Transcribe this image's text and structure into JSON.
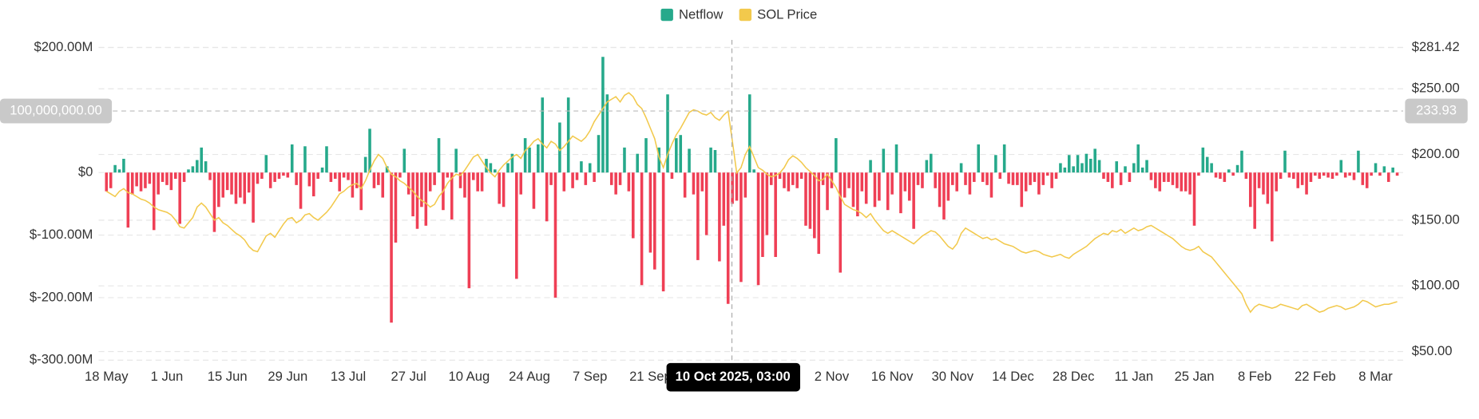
{
  "chart_data": {
    "type": "bar-line",
    "categories": [
      "18 May",
      null,
      null,
      null,
      null,
      null,
      null,
      null,
      null,
      null,
      null,
      null,
      null,
      null,
      "1 Jun",
      null,
      null,
      null,
      null,
      null,
      null,
      null,
      null,
      null,
      null,
      null,
      null,
      null,
      "15 Jun",
      null,
      null,
      null,
      null,
      null,
      null,
      null,
      null,
      null,
      null,
      null,
      null,
      null,
      "29 Jun",
      null,
      null,
      null,
      null,
      null,
      null,
      null,
      null,
      null,
      null,
      null,
      null,
      null,
      "13 Jul",
      null,
      null,
      null,
      null,
      null,
      null,
      null,
      null,
      null,
      null,
      null,
      null,
      null,
      "27 Jul",
      null,
      null,
      null,
      null,
      null,
      null,
      null,
      null,
      null,
      null,
      null,
      null,
      null,
      "10 Aug",
      null,
      null,
      null,
      null,
      null,
      null,
      null,
      null,
      null,
      null,
      null,
      null,
      null,
      "24 Aug",
      null,
      null,
      null,
      null,
      null,
      null,
      null,
      null,
      null,
      null,
      null,
      null,
      null,
      "7 Sep",
      null,
      null,
      null,
      null,
      null,
      null,
      null,
      null,
      null,
      null,
      null,
      null,
      null,
      "21 Sep",
      null,
      null,
      null,
      null,
      null,
      null,
      null,
      null,
      null,
      null,
      null,
      null,
      null,
      null,
      null,
      null,
      null,
      null,
      null,
      null,
      null,
      null,
      null,
      null,
      null,
      null,
      null,
      null,
      null,
      null,
      null,
      null,
      null,
      null,
      null,
      null,
      null,
      null,
      null,
      null,
      null,
      "2 Nov",
      null,
      null,
      null,
      null,
      null,
      null,
      null,
      null,
      null,
      null,
      null,
      null,
      null,
      "16 Nov",
      null,
      null,
      null,
      null,
      null,
      null,
      null,
      null,
      null,
      null,
      null,
      null,
      null,
      "30 Nov",
      null,
      null,
      null,
      null,
      null,
      null,
      null,
      null,
      null,
      null,
      null,
      null,
      null,
      "14 Dec",
      null,
      null,
      null,
      null,
      null,
      null,
      null,
      null,
      null,
      null,
      null,
      null,
      null,
      "28 Dec",
      null,
      null,
      null,
      null,
      null,
      null,
      null,
      null,
      null,
      null,
      null,
      null,
      null,
      "11 Jan",
      null,
      null,
      null,
      null,
      null,
      null,
      null,
      null,
      null,
      null,
      null,
      null,
      null,
      "25 Jan",
      null,
      null,
      null,
      null,
      null,
      null,
      null,
      null,
      null,
      null,
      null,
      null,
      null,
      "8 Feb",
      null,
      null,
      null,
      null,
      null,
      null,
      null,
      null,
      null,
      null,
      null,
      null,
      null,
      "22 Feb",
      null,
      null,
      null,
      null,
      null,
      null,
      null,
      null,
      null,
      null,
      null,
      null,
      null,
      "8 Mar",
      null,
      null,
      null,
      null,
      null
    ],
    "series": [
      {
        "name": "Netflow",
        "type": "bar",
        "color": "#26a98b",
        "negative_color": "#ef3f55",
        "values": [
          -30,
          -25,
          12,
          5,
          22,
          -88,
          -35,
          -22,
          -30,
          -25,
          -18,
          -92,
          -35,
          -15,
          -20,
          -28,
          -10,
          -82,
          -15,
          5,
          10,
          20,
          40,
          18,
          -12,
          -95,
          -55,
          -40,
          -28,
          -35,
          -50,
          -40,
          -50,
          -32,
          -80,
          -18,
          -10,
          28,
          -25,
          -15,
          -10,
          -5,
          -8,
          45,
          -20,
          -58,
          42,
          -22,
          -38,
          -10,
          8,
          42,
          -15,
          -10,
          -30,
          -8,
          -12,
          -40,
          -25,
          -60,
          25,
          70,
          -25,
          -20,
          -40,
          10,
          -240,
          -112,
          -8,
          38,
          -35,
          -70,
          -90,
          -55,
          -85,
          -30,
          -20,
          55,
          -60,
          -8,
          -75,
          38,
          -25,
          -40,
          -185,
          -12,
          -30,
          -30,
          22,
          15,
          5,
          -50,
          -55,
          15,
          30,
          -170,
          -35,
          55,
          40,
          -58,
          45,
          120,
          -78,
          -20,
          -200,
          80,
          -30,
          120,
          -25,
          -12,
          18,
          -20,
          15,
          -15,
          60,
          185,
          125,
          -20,
          -35,
          -20,
          40,
          -30,
          -105,
          30,
          -180,
          55,
          -128,
          -155,
          40,
          -190,
          125,
          -10,
          55,
          60,
          -40,
          38,
          -35,
          -140,
          -30,
          -100,
          40,
          36,
          -142,
          -85,
          -210,
          -50,
          -45,
          -175,
          -40,
          125,
          5,
          -180,
          -135,
          -100,
          -20,
          -135,
          -10,
          -25,
          -30,
          -20,
          -25,
          -10,
          -85,
          -90,
          -105,
          -130,
          -20,
          -60,
          -25,
          55,
          -160,
          -40,
          -25,
          -55,
          -70,
          -30,
          -50,
          20,
          -55,
          -45,
          38,
          -60,
          -35,
          45,
          -65,
          -30,
          -45,
          -90,
          -20,
          -25,
          20,
          30,
          -25,
          -55,
          -75,
          -45,
          -20,
          -30,
          15,
          -20,
          -35,
          -15,
          45,
          -15,
          -20,
          -40,
          28,
          -10,
          45,
          -18,
          -20,
          -20,
          -55,
          -30,
          -20,
          -15,
          -35,
          -20,
          -5,
          -25,
          -10,
          15,
          8,
          28,
          10,
          28,
          15,
          30,
          22,
          38,
          20,
          -10,
          -15,
          -25,
          18,
          -20,
          10,
          -15,
          15,
          45,
          8,
          20,
          -12,
          -25,
          -30,
          -15,
          -15,
          -20,
          -25,
          -30,
          -30,
          -35,
          -85,
          -5,
          40,
          25,
          15,
          -8,
          -10,
          -15,
          5,
          -5,
          12,
          35,
          -10,
          -55,
          -90,
          -25,
          -35,
          -50,
          -110,
          -30,
          -10,
          35,
          -8,
          -10,
          -25,
          -20,
          -35,
          -15,
          -5,
          -10,
          -5,
          -8,
          -10,
          -5,
          20,
          -8,
          -5,
          -12,
          35,
          -20,
          -25,
          -5,
          15,
          -5,
          10,
          -15,
          8,
          -5
        ]
      },
      {
        "name": "SOL Price",
        "type": "line",
        "axis": "y2",
        "color": "#f2c94c",
        "values": [
          172,
          170,
          168,
          172,
          174,
          171,
          170,
          168,
          166,
          165,
          163,
          160,
          158,
          157,
          156,
          154,
          150,
          145,
          144,
          148,
          152,
          160,
          163,
          160,
          155,
          150,
          152,
          148,
          146,
          143,
          140,
          138,
          135,
          130,
          127,
          126,
          132,
          138,
          140,
          137,
          142,
          147,
          151,
          152,
          148,
          150,
          154,
          155,
          152,
          150,
          153,
          156,
          160,
          165,
          170,
          172,
          175,
          177,
          178,
          174,
          180,
          188,
          195,
          200,
          197,
          190,
          185,
          183,
          180,
          178,
          175,
          172,
          168,
          165,
          163,
          160,
          162,
          168,
          172,
          178,
          182,
          185,
          184,
          188,
          193,
          198,
          200,
          195,
          190,
          186,
          183,
          188,
          192,
          195,
          198,
          200,
          197,
          203,
          206,
          210,
          212,
          208,
          205,
          210,
          208,
          203,
          206,
          210,
          214,
          212,
          210,
          213,
          218,
          225,
          230,
          235,
          240,
          242,
          244,
          240,
          245,
          247,
          244,
          238,
          235,
          228,
          220,
          212,
          198,
          190,
          200,
          208,
          215,
          220,
          226,
          232,
          234,
          233,
          231,
          230,
          232,
          228,
          226,
          230,
          233,
          210,
          186,
          190,
          200,
          206,
          198,
          190,
          188,
          185,
          183,
          184,
          186,
          190,
          196,
          199,
          197,
          194,
          190,
          187,
          184,
          180,
          181,
          185,
          180,
          175,
          168,
          162,
          160,
          158,
          157,
          155,
          152,
          155,
          150,
          146,
          142,
          140,
          142,
          140,
          138,
          136,
          134,
          132,
          135,
          138,
          140,
          142,
          141,
          138,
          134,
          130,
          128,
          132,
          140,
          144,
          142,
          140,
          138,
          136,
          137,
          135,
          136,
          134,
          132,
          131,
          130,
          128,
          126,
          125,
          126,
          127,
          126,
          124,
          123,
          122,
          123,
          124,
          122,
          121,
          124,
          126,
          128,
          130,
          133,
          136,
          138,
          140,
          139,
          142,
          141,
          143,
          140,
          142,
          144,
          142,
          143,
          145,
          146,
          144,
          142,
          140,
          138,
          136,
          133,
          130,
          128,
          127,
          128,
          130,
          126,
          124,
          122,
          118,
          114,
          110,
          106,
          102,
          98,
          94,
          86,
          80,
          84,
          86,
          85,
          84,
          83,
          84,
          86,
          85,
          84,
          83,
          82,
          85,
          86,
          84,
          82,
          80,
          81,
          83,
          84,
          85,
          84,
          82,
          83,
          84,
          86,
          89,
          88,
          86,
          84,
          85,
          86,
          86,
          87,
          88
        ]
      }
    ],
    "ylim": [
      -300,
      200
    ],
    "yticks": [
      {
        "value": 200,
        "label": "$200.00M"
      },
      {
        "value": 0,
        "label": "$0"
      },
      {
        "value": -100,
        "label": "$-100.00M"
      },
      {
        "value": -200,
        "label": "$-200.00M"
      },
      {
        "value": -300,
        "label": "$-300.00M"
      }
    ],
    "y2lim": [
      43.48,
      281.42
    ],
    "y2ticks": [
      {
        "value": 281.42,
        "label": "$281.42"
      },
      {
        "value": 250,
        "label": "$250.00"
      },
      {
        "value": 200,
        "label": "$200.00"
      },
      {
        "value": 150,
        "label": "$150.00"
      },
      {
        "value": 100,
        "label": "$100.00"
      },
      {
        "value": 50,
        "label": "$50.00"
      }
    ],
    "grid": true,
    "legend": "top",
    "crosshair": {
      "x_label": "10 Oct 2025, 03:00",
      "y_label": "100,000,000.00",
      "y2_label": "233.93"
    }
  }
}
